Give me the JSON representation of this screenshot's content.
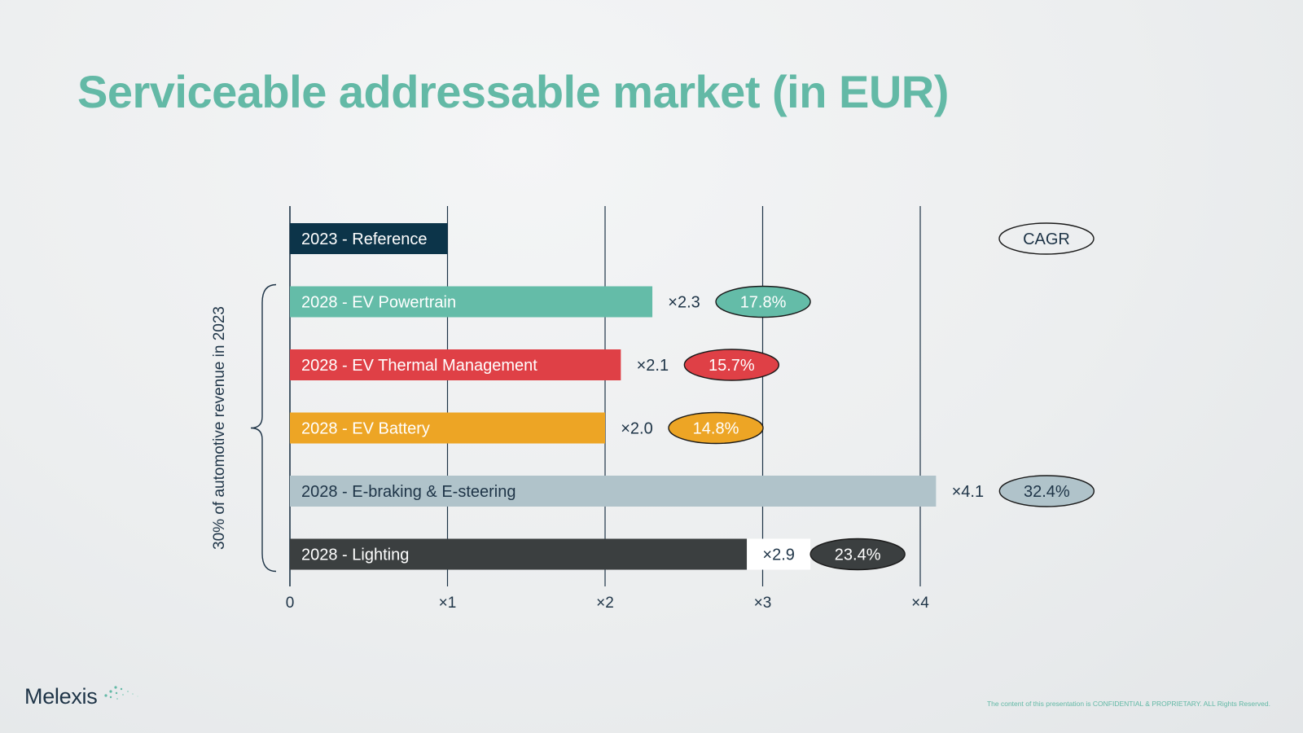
{
  "page": {
    "title": "Serviceable addressable market (in EUR)",
    "footer_note": "The content of this presentation is CONFIDENTIAL & PROPRIETARY. ALL Rights Reserved.",
    "logo_text": "Melexis"
  },
  "chart_data": {
    "type": "bar",
    "orientation": "horizontal",
    "title": "Serviceable addressable market (in EUR)",
    "xlabel": "",
    "ylabel": "30% of automotive revenue in 2023",
    "xlim": [
      0,
      4
    ],
    "x_ticks": [
      "0",
      "×1",
      "×2",
      "×3",
      "×4"
    ],
    "grid": true,
    "legend_label": "CAGR",
    "bars": [
      {
        "label": "2023 - Reference",
        "value": 1.0,
        "multiplier": "",
        "cagr": "",
        "color": "#0c3449",
        "cagr_text_color": "#ffffff"
      },
      {
        "label": "2028 - EV Powertrain",
        "value": 2.3,
        "multiplier": "×2.3",
        "cagr": "17.8%",
        "color": "#64bca8",
        "cagr_text_color": "#ffffff"
      },
      {
        "label": "2028 - EV Thermal Management",
        "value": 2.1,
        "multiplier": "×2.1",
        "cagr": "15.7%",
        "color": "#df4046",
        "cagr_text_color": "#ffffff"
      },
      {
        "label": "2028 - EV Battery",
        "value": 2.0,
        "multiplier": "×2.0",
        "cagr": "14.8%",
        "color": "#eda525",
        "cagr_text_color": "#ffffff"
      },
      {
        "label": "2028 - E-braking & E-steering",
        "value": 4.1,
        "multiplier": "×4.1",
        "cagr": "32.4%",
        "color": "#b0c3ca",
        "cagr_text_color": "#1e3447"
      },
      {
        "label": "2028 - Lighting",
        "value": 2.9,
        "multiplier": "×2.9",
        "cagr": "23.4%",
        "color": "#3b3f40",
        "cagr_text_color": "#ffffff"
      }
    ]
  },
  "colors": {
    "title": "#63b9a6",
    "axis": "#1e3447",
    "text_dark": "#1e3447"
  }
}
